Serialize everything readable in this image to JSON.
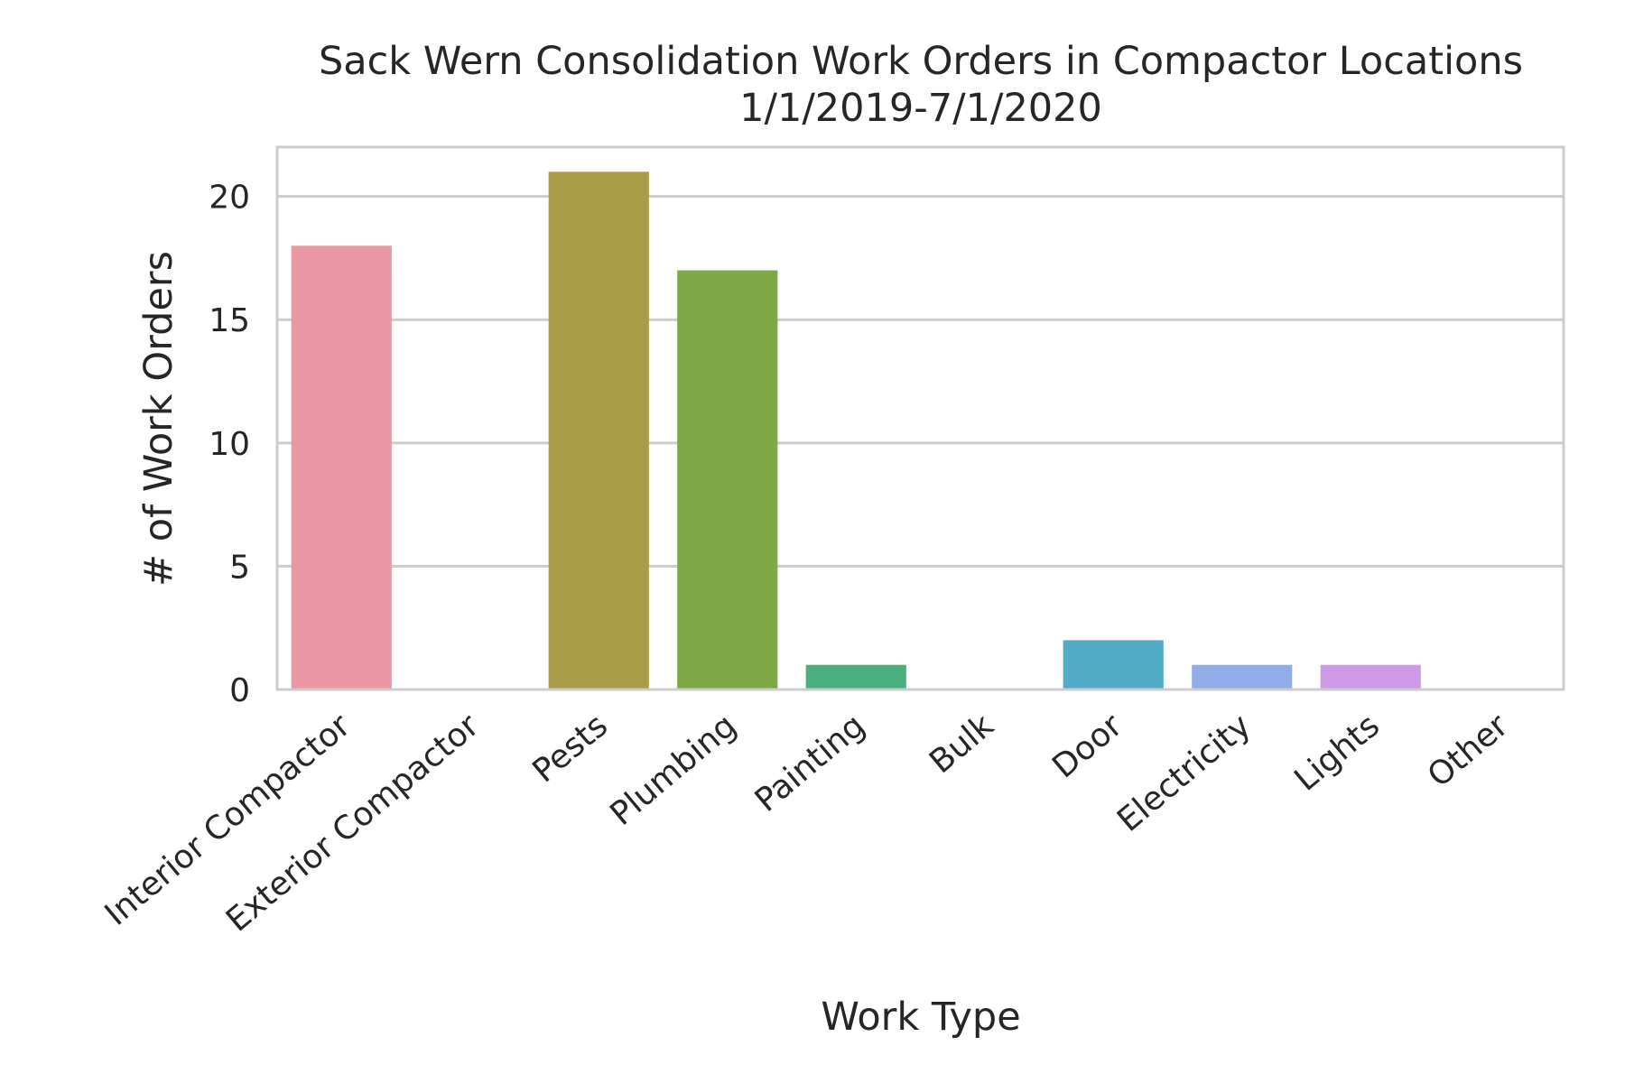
{
  "chart_data": {
    "type": "bar",
    "title": "Sack Wern Consolidation Work Orders in Compactor Locations",
    "subtitle": "1/1/2019-7/1/2020",
    "xlabel": "Work Type",
    "ylabel": "# of Work Orders",
    "categories": [
      "Interior Compactor",
      "Exterior Compactor",
      "Pests",
      "Plumbing",
      "Painting",
      "Bulk",
      "Door",
      "Electricity",
      "Lights",
      "Other"
    ],
    "values": [
      18,
      0,
      21,
      17,
      1,
      0,
      2,
      1,
      1,
      0
    ],
    "colors": [
      "#ea96a3",
      "#d3a166",
      "#a99d47",
      "#7ea746",
      "#4ab07f",
      "#4dada6",
      "#52abc7",
      "#91ace7",
      "#cf9ae5",
      "#ea90d1"
    ],
    "ylim": [
      0,
      22
    ],
    "yticks": [
      0,
      5,
      10,
      15,
      20
    ],
    "grid": true
  }
}
